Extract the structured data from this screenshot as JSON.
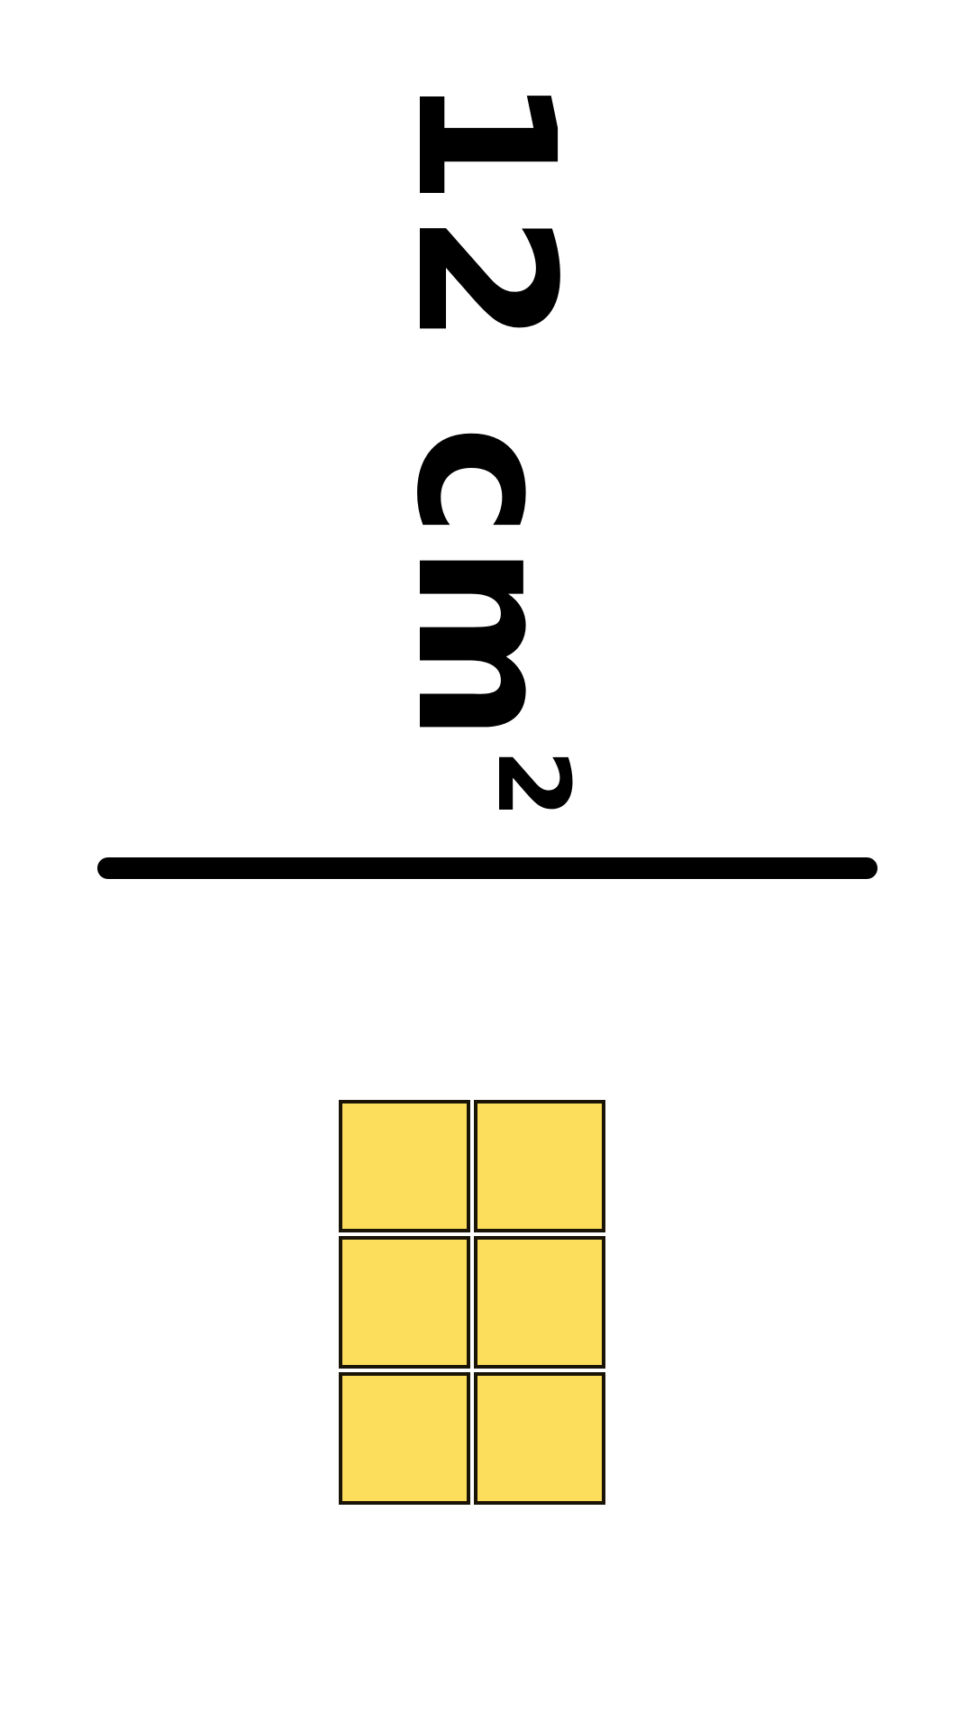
{
  "area_label": {
    "value": "12 cm",
    "exponent": "2"
  },
  "unit_grid": {
    "columns": 2,
    "rows": 3,
    "fill_color": "#fddd5c",
    "border_color": "#1a1407"
  }
}
